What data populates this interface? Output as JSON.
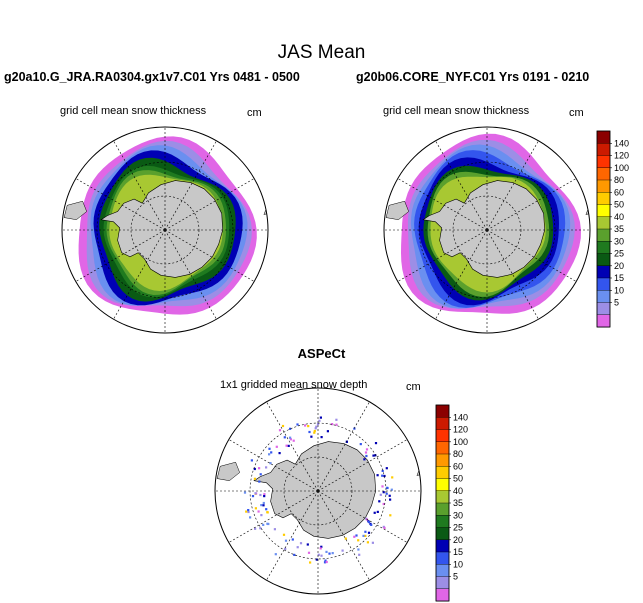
{
  "title": "JAS Mean",
  "panels": {
    "left": {
      "title": "g20a10.G_JRA.RA0304.gx1v7.C01  Yrs 0481 - 0500",
      "subtitle": "grid cell mean snow thickness",
      "unit": "cm"
    },
    "right": {
      "title": "g20b06.CORE_NYF.C01  Yrs 0191 - 0210",
      "subtitle": "grid cell mean snow thickness",
      "unit": "cm"
    },
    "aspect": {
      "title": "ASPeCt",
      "subtitle": "1x1 gridded mean snow depth",
      "unit": "cm"
    }
  },
  "colorbar": {
    "labels": [
      "140",
      "120",
      "100",
      "80",
      "60",
      "50",
      "40",
      "35",
      "30",
      "25",
      "20",
      "15",
      "10",
      "5"
    ],
    "colors": [
      "#8b0000",
      "#cc1a00",
      "#ff3300",
      "#ff6600",
      "#ff9900",
      "#ffcc00",
      "#ffff00",
      "#a8c832",
      "#5aa02d",
      "#1f7a1f",
      "#0a5a14",
      "#0000b4",
      "#3355ee",
      "#6a8ff0",
      "#9c8ee6",
      "#e066e6"
    ]
  },
  "chart_data": [
    {
      "type": "heatmap",
      "projection": "south-polar-stereographic",
      "title": "g20a10.G_JRA.RA0304.gx1v7.C01  Yrs 0481 - 0500",
      "variable": "grid cell mean snow thickness",
      "unit": "cm",
      "levels": [
        5,
        10,
        15,
        20,
        25,
        30,
        35,
        40,
        50,
        60,
        80,
        100,
        120,
        140
      ]
    },
    {
      "type": "heatmap",
      "projection": "south-polar-stereographic",
      "title": "g20b06.CORE_NYF.C01  Yrs 0191 - 0210",
      "variable": "grid cell mean snow thickness",
      "unit": "cm",
      "levels": [
        5,
        10,
        15,
        20,
        25,
        30,
        35,
        40,
        50,
        60,
        80,
        100,
        120,
        140
      ]
    },
    {
      "type": "heatmap",
      "projection": "south-polar-stereographic",
      "title": "ASPeCt",
      "variable": "1x1 gridded mean snow depth",
      "unit": "cm",
      "levels": [
        5,
        10,
        15,
        20,
        25,
        30,
        35,
        40,
        50,
        60,
        80,
        100,
        120,
        140
      ]
    }
  ]
}
